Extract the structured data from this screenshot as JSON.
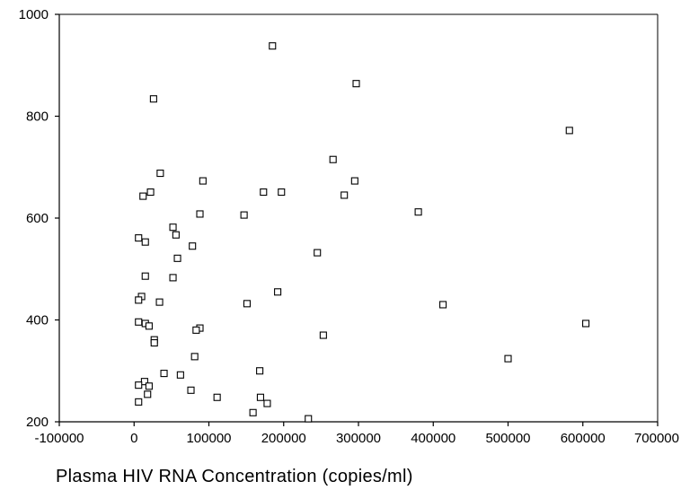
{
  "chart_data": {
    "type": "scatter",
    "title": "",
    "xlabel": "Plasma HIV RNA Concentration (copies/ml)",
    "ylabel": "",
    "xlim": [
      -100000,
      700000
    ],
    "ylim": [
      200,
      1000
    ],
    "x_ticks": [
      -100000,
      0,
      100000,
      200000,
      300000,
      400000,
      500000,
      600000,
      700000
    ],
    "x_tick_labels": [
      "-100000",
      "0",
      "100000",
      "200000",
      "300000",
      "400000",
      "500000",
      "600000",
      "700000"
    ],
    "y_ticks": [
      200,
      400,
      600,
      800,
      1000
    ],
    "y_tick_labels": [
      "200",
      "400",
      "600",
      "800",
      "1000"
    ],
    "grid": false,
    "marker": "hollow-square",
    "marker_color": "#000000",
    "series": [
      {
        "points": [
          [
            185000,
            938
          ],
          [
            297000,
            864
          ],
          [
            26000,
            834
          ],
          [
            582000,
            772
          ],
          [
            266000,
            715
          ],
          [
            35000,
            688
          ],
          [
            295000,
            673
          ],
          [
            92000,
            673
          ],
          [
            22000,
            651
          ],
          [
            173000,
            651
          ],
          [
            197000,
            651
          ],
          [
            281000,
            645
          ],
          [
            12000,
            643
          ],
          [
            380000,
            612
          ],
          [
            88000,
            608
          ],
          [
            147000,
            606
          ],
          [
            52000,
            582
          ],
          [
            56000,
            567
          ],
          [
            6000,
            561
          ],
          [
            15000,
            553
          ],
          [
            78000,
            545
          ],
          [
            245000,
            532
          ],
          [
            58000,
            521
          ],
          [
            15000,
            486
          ],
          [
            52000,
            483
          ],
          [
            192000,
            455
          ],
          [
            10000,
            446
          ],
          [
            6000,
            439
          ],
          [
            34000,
            435
          ],
          [
            151000,
            432
          ],
          [
            413000,
            430
          ],
          [
            6000,
            396
          ],
          [
            604000,
            393
          ],
          [
            15000,
            393
          ],
          [
            20000,
            388
          ],
          [
            88000,
            384
          ],
          [
            83000,
            380
          ],
          [
            253000,
            370
          ],
          [
            27000,
            361
          ],
          [
            27000,
            355
          ],
          [
            81000,
            328
          ],
          [
            500000,
            324
          ],
          [
            168000,
            300
          ],
          [
            40000,
            295
          ],
          [
            62000,
            292
          ],
          [
            14000,
            279
          ],
          [
            6000,
            272
          ],
          [
            20000,
            270
          ],
          [
            76000,
            262
          ],
          [
            18000,
            254
          ],
          [
            111000,
            248
          ],
          [
            169000,
            248
          ],
          [
            6000,
            239
          ],
          [
            178000,
            236
          ],
          [
            159000,
            218
          ],
          [
            233000,
            206
          ]
        ]
      }
    ]
  }
}
